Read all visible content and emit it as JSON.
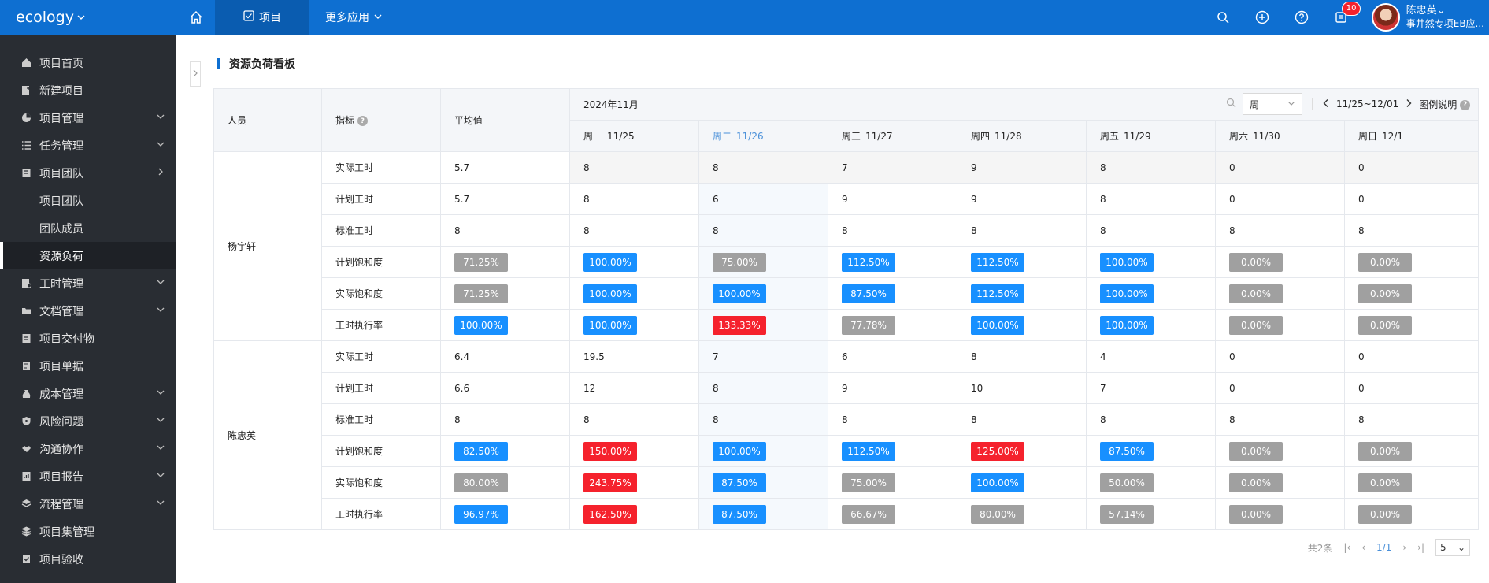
{
  "app": {
    "brand": "ecology"
  },
  "topnav": {
    "tabs": [
      {
        "label": "项目",
        "icon": "checkbox-icon"
      },
      {
        "label": "更多应用",
        "icon": "chevron-down-icon"
      }
    ],
    "notification_count": "10",
    "user": {
      "name": "陈忠英",
      "org": "事井然专项EB应..."
    }
  },
  "sidebar": {
    "items": [
      {
        "label": "项目首页",
        "icon": "home-icon"
      },
      {
        "label": "新建项目",
        "icon": "new-doc-icon"
      },
      {
        "label": "项目管理",
        "icon": "pie-icon"
      },
      {
        "label": "任务管理",
        "icon": "list-icon"
      },
      {
        "label": "项目团队",
        "icon": "team-icon"
      },
      {
        "label": "项目团队"
      },
      {
        "label": "团队成员"
      },
      {
        "label": "资源负荷"
      },
      {
        "label": "工时管理",
        "icon": "clock-doc-icon"
      },
      {
        "label": "文档管理",
        "icon": "folder-icon"
      },
      {
        "label": "项目交付物",
        "icon": "deliverable-icon"
      },
      {
        "label": "项目单据",
        "icon": "receipt-icon"
      },
      {
        "label": "成本管理",
        "icon": "money-bag-icon"
      },
      {
        "label": "风险问题",
        "icon": "shield-icon"
      },
      {
        "label": "沟通协作",
        "icon": "handshake-icon"
      },
      {
        "label": "项目报告",
        "icon": "report-icon"
      },
      {
        "label": "流程管理",
        "icon": "layers-icon"
      },
      {
        "label": "项目集管理",
        "icon": "stack-icon"
      },
      {
        "label": "项目验收",
        "icon": "acceptance-icon"
      }
    ]
  },
  "page": {
    "title": "资源负荷看板"
  },
  "table": {
    "headers": {
      "person": "人员",
      "metric": "指标",
      "average": "平均值",
      "month": "2024年11月"
    },
    "toolbar": {
      "period": "周",
      "range": "11/25~12/01",
      "legend": "图例说明"
    },
    "days": [
      {
        "dow": "周一",
        "date": "11/25"
      },
      {
        "dow": "周二",
        "date": "11/26"
      },
      {
        "dow": "周三",
        "date": "11/27"
      },
      {
        "dow": "周四",
        "date": "11/28"
      },
      {
        "dow": "周五",
        "date": "11/29"
      },
      {
        "dow": "周六",
        "date": "11/30"
      },
      {
        "dow": "周日",
        "date": "12/1"
      }
    ],
    "colors": {
      "blue": "#1890ff",
      "gray": "#a0a0a0",
      "red": "#f5222d"
    },
    "groups": [
      {
        "person": "杨宇轩",
        "rows": [
          {
            "metric": "实际工时",
            "avg": "5.7",
            "vals": [
              "8",
              "8",
              "7",
              "9",
              "8",
              "0",
              "0"
            ]
          },
          {
            "metric": "计划工时",
            "avg": "5.7",
            "vals": [
              "8",
              "6",
              "9",
              "9",
              "8",
              "0",
              "0"
            ]
          },
          {
            "metric": "标准工时",
            "avg": "8",
            "vals": [
              "8",
              "8",
              "8",
              "8",
              "8",
              "8",
              "8"
            ]
          },
          {
            "metric": "计划饱和度",
            "tag": true,
            "avg": {
              "text": "71.25%",
              "color": "gray"
            },
            "vals": [
              {
                "text": "100.00%",
                "color": "blue"
              },
              {
                "text": "75.00%",
                "color": "gray"
              },
              {
                "text": "112.50%",
                "color": "blue"
              },
              {
                "text": "112.50%",
                "color": "blue"
              },
              {
                "text": "100.00%",
                "color": "blue"
              },
              {
                "text": "0.00%",
                "color": "gray"
              },
              {
                "text": "0.00%",
                "color": "gray"
              }
            ]
          },
          {
            "metric": "实际饱和度",
            "tag": true,
            "avg": {
              "text": "71.25%",
              "color": "gray"
            },
            "vals": [
              {
                "text": "100.00%",
                "color": "blue"
              },
              {
                "text": "100.00%",
                "color": "blue"
              },
              {
                "text": "87.50%",
                "color": "blue"
              },
              {
                "text": "112.50%",
                "color": "blue"
              },
              {
                "text": "100.00%",
                "color": "blue"
              },
              {
                "text": "0.00%",
                "color": "gray"
              },
              {
                "text": "0.00%",
                "color": "gray"
              }
            ]
          },
          {
            "metric": "工时执行率",
            "tag": true,
            "avg": {
              "text": "100.00%",
              "color": "blue"
            },
            "vals": [
              {
                "text": "100.00%",
                "color": "blue"
              },
              {
                "text": "133.33%",
                "color": "red"
              },
              {
                "text": "77.78%",
                "color": "gray"
              },
              {
                "text": "100.00%",
                "color": "blue"
              },
              {
                "text": "100.00%",
                "color": "blue"
              },
              {
                "text": "0.00%",
                "color": "gray"
              },
              {
                "text": "0.00%",
                "color": "gray"
              }
            ]
          }
        ]
      },
      {
        "person": "陈忠英",
        "rows": [
          {
            "metric": "实际工时",
            "avg": "6.4",
            "vals": [
              "19.5",
              "7",
              "6",
              "8",
              "4",
              "0",
              "0"
            ]
          },
          {
            "metric": "计划工时",
            "avg": "6.6",
            "vals": [
              "12",
              "8",
              "9",
              "10",
              "7",
              "0",
              "0"
            ]
          },
          {
            "metric": "标准工时",
            "avg": "8",
            "vals": [
              "8",
              "8",
              "8",
              "8",
              "8",
              "8",
              "8"
            ]
          },
          {
            "metric": "计划饱和度",
            "tag": true,
            "avg": {
              "text": "82.50%",
              "color": "blue"
            },
            "vals": [
              {
                "text": "150.00%",
                "color": "red"
              },
              {
                "text": "100.00%",
                "color": "blue"
              },
              {
                "text": "112.50%",
                "color": "blue"
              },
              {
                "text": "125.00%",
                "color": "red"
              },
              {
                "text": "87.50%",
                "color": "blue"
              },
              {
                "text": "0.00%",
                "color": "gray"
              },
              {
                "text": "0.00%",
                "color": "gray"
              }
            ]
          },
          {
            "metric": "实际饱和度",
            "tag": true,
            "avg": {
              "text": "80.00%",
              "color": "gray"
            },
            "vals": [
              {
                "text": "243.75%",
                "color": "red"
              },
              {
                "text": "87.50%",
                "color": "blue"
              },
              {
                "text": "75.00%",
                "color": "gray"
              },
              {
                "text": "100.00%",
                "color": "blue"
              },
              {
                "text": "50.00%",
                "color": "gray"
              },
              {
                "text": "0.00%",
                "color": "gray"
              },
              {
                "text": "0.00%",
                "color": "gray"
              }
            ]
          },
          {
            "metric": "工时执行率",
            "tag": true,
            "avg": {
              "text": "96.97%",
              "color": "blue"
            },
            "vals": [
              {
                "text": "162.50%",
                "color": "red"
              },
              {
                "text": "87.50%",
                "color": "blue"
              },
              {
                "text": "66.67%",
                "color": "gray"
              },
              {
                "text": "80.00%",
                "color": "gray"
              },
              {
                "text": "57.14%",
                "color": "gray"
              },
              {
                "text": "0.00%",
                "color": "gray"
              },
              {
                "text": "0.00%",
                "color": "gray"
              }
            ]
          }
        ]
      }
    ]
  },
  "pager": {
    "total": "共2条",
    "page": "1/1",
    "size": "5"
  }
}
